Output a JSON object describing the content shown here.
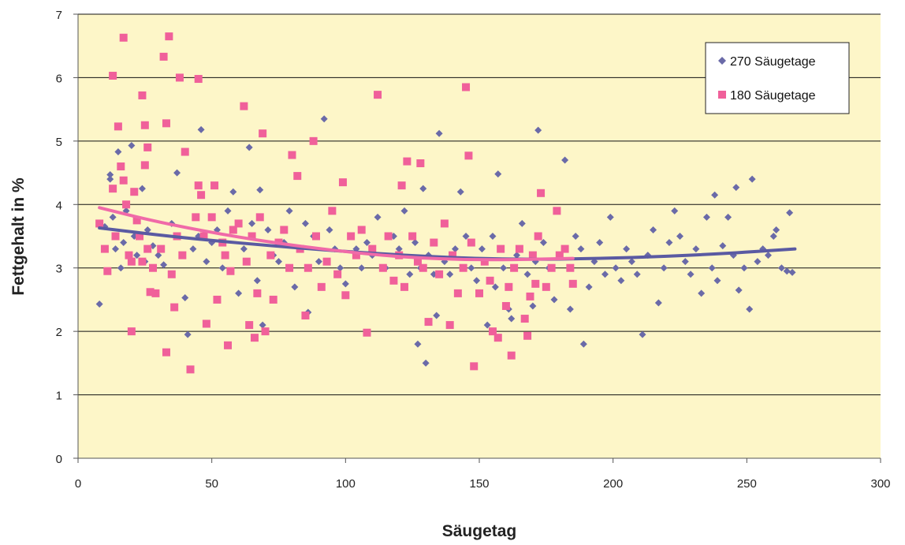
{
  "chart_data": {
    "type": "scatter",
    "title": "",
    "xlabel": "Säugetag",
    "ylabel": "Fettgehalt in %",
    "xlim": [
      0,
      300
    ],
    "ylim": [
      0,
      7
    ],
    "xticks": [
      0,
      50,
      100,
      150,
      200,
      250,
      300
    ],
    "yticks": [
      0,
      1,
      2,
      3,
      4,
      5,
      6,
      7
    ],
    "grid": "horizontal",
    "legend_position": "top-right",
    "plot_background": "#fdf6c8",
    "series": [
      {
        "name": "270 Säugetage",
        "marker": "diamond",
        "color": "#6a6aa8",
        "points": [
          [
            8,
            2.43
          ],
          [
            10,
            3.65
          ],
          [
            12,
            4.47
          ],
          [
            12,
            4.4
          ],
          [
            13,
            3.8
          ],
          [
            14,
            3.3
          ],
          [
            15,
            4.83
          ],
          [
            16,
            3.0
          ],
          [
            17,
            3.4
          ],
          [
            18,
            3.9
          ],
          [
            20,
            4.93
          ],
          [
            21,
            3.5
          ],
          [
            22,
            3.2
          ],
          [
            24,
            4.25
          ],
          [
            25,
            3.1
          ],
          [
            26,
            3.6
          ],
          [
            28,
            3.35
          ],
          [
            30,
            3.2
          ],
          [
            32,
            3.05
          ],
          [
            35,
            3.7
          ],
          [
            37,
            4.5
          ],
          [
            40,
            2.53
          ],
          [
            41,
            1.95
          ],
          [
            43,
            3.3
          ],
          [
            45,
            3.5
          ],
          [
            46,
            5.18
          ],
          [
            48,
            3.1
          ],
          [
            50,
            3.4
          ],
          [
            52,
            3.6
          ],
          [
            54,
            3.0
          ],
          [
            56,
            3.9
          ],
          [
            58,
            4.2
          ],
          [
            60,
            2.6
          ],
          [
            62,
            3.3
          ],
          [
            64,
            4.9
          ],
          [
            65,
            3.7
          ],
          [
            67,
            2.8
          ],
          [
            68,
            4.23
          ],
          [
            69,
            2.1
          ],
          [
            71,
            3.6
          ],
          [
            73,
            3.2
          ],
          [
            75,
            3.1
          ],
          [
            77,
            3.4
          ],
          [
            79,
            3.9
          ],
          [
            81,
            2.7
          ],
          [
            83,
            3.3
          ],
          [
            85,
            3.7
          ],
          [
            86,
            2.3
          ],
          [
            88,
            3.5
          ],
          [
            90,
            3.1
          ],
          [
            92,
            5.35
          ],
          [
            94,
            3.6
          ],
          [
            96,
            3.3
          ],
          [
            98,
            3.0
          ],
          [
            100,
            2.75
          ],
          [
            102,
            3.5
          ],
          [
            104,
            3.3
          ],
          [
            106,
            3.0
          ],
          [
            108,
            3.4
          ],
          [
            110,
            3.2
          ],
          [
            112,
            3.8
          ],
          [
            115,
            3.0
          ],
          [
            118,
            3.5
          ],
          [
            120,
            3.3
          ],
          [
            122,
            3.9
          ],
          [
            124,
            2.9
          ],
          [
            126,
            3.4
          ],
          [
            127,
            1.8
          ],
          [
            128,
            3.0
          ],
          [
            129,
            4.25
          ],
          [
            130,
            1.5
          ],
          [
            131,
            3.2
          ],
          [
            133,
            2.9
          ],
          [
            134,
            2.25
          ],
          [
            135,
            5.12
          ],
          [
            137,
            3.1
          ],
          [
            139,
            2.9
          ],
          [
            141,
            3.3
          ],
          [
            143,
            4.2
          ],
          [
            145,
            3.5
          ],
          [
            147,
            3.0
          ],
          [
            149,
            2.8
          ],
          [
            151,
            3.3
          ],
          [
            153,
            2.1
          ],
          [
            155,
            3.5
          ],
          [
            156,
            2.7
          ],
          [
            157,
            4.48
          ],
          [
            159,
            3.0
          ],
          [
            161,
            2.35
          ],
          [
            162,
            2.2
          ],
          [
            164,
            3.2
          ],
          [
            166,
            3.7
          ],
          [
            168,
            2.9
          ],
          [
            170,
            2.4
          ],
          [
            171,
            3.1
          ],
          [
            172,
            5.17
          ],
          [
            174,
            3.4
          ],
          [
            176,
            3.0
          ],
          [
            178,
            2.5
          ],
          [
            180,
            3.2
          ],
          [
            182,
            4.7
          ],
          [
            184,
            2.35
          ],
          [
            186,
            3.5
          ],
          [
            188,
            3.3
          ],
          [
            189,
            1.8
          ],
          [
            191,
            2.7
          ],
          [
            193,
            3.1
          ],
          [
            195,
            3.4
          ],
          [
            197,
            2.9
          ],
          [
            199,
            3.8
          ],
          [
            201,
            3.0
          ],
          [
            203,
            2.8
          ],
          [
            205,
            3.3
          ],
          [
            207,
            3.1
          ],
          [
            209,
            2.9
          ],
          [
            211,
            1.95
          ],
          [
            213,
            3.2
          ],
          [
            215,
            3.6
          ],
          [
            217,
            2.45
          ],
          [
            219,
            3.0
          ],
          [
            221,
            3.4
          ],
          [
            223,
            3.9
          ],
          [
            225,
            3.5
          ],
          [
            227,
            3.1
          ],
          [
            229,
            2.9
          ],
          [
            231,
            3.3
          ],
          [
            233,
            2.6
          ],
          [
            235,
            3.8
          ],
          [
            237,
            3.0
          ],
          [
            238,
            4.15
          ],
          [
            239,
            2.8
          ],
          [
            241,
            3.35
          ],
          [
            243,
            3.8
          ],
          [
            245,
            3.2
          ],
          [
            246,
            4.27
          ],
          [
            247,
            2.65
          ],
          [
            249,
            3.0
          ],
          [
            251,
            2.35
          ],
          [
            252,
            4.4
          ],
          [
            254,
            3.1
          ],
          [
            256,
            3.3
          ],
          [
            258,
            3.2
          ],
          [
            260,
            3.5
          ],
          [
            261,
            3.6
          ],
          [
            263,
            3.0
          ],
          [
            265,
            2.95
          ],
          [
            266,
            3.87
          ],
          [
            267,
            2.93
          ]
        ]
      },
      {
        "name": "180 Säugetage",
        "marker": "square",
        "color": "#f0609a",
        "points": [
          [
            8,
            3.7
          ],
          [
            10,
            3.3
          ],
          [
            11,
            2.95
          ],
          [
            13,
            4.25
          ],
          [
            13,
            6.03
          ],
          [
            14,
            3.5
          ],
          [
            15,
            5.23
          ],
          [
            16,
            4.6
          ],
          [
            17,
            4.38
          ],
          [
            17,
            6.63
          ],
          [
            18,
            4.0
          ],
          [
            19,
            3.2
          ],
          [
            20,
            3.1
          ],
          [
            20,
            2.0
          ],
          [
            21,
            4.2
          ],
          [
            22,
            3.75
          ],
          [
            23,
            3.5
          ],
          [
            24,
            3.1
          ],
          [
            24,
            5.72
          ],
          [
            25,
            5.25
          ],
          [
            25,
            4.62
          ],
          [
            26,
            4.9
          ],
          [
            26,
            3.3
          ],
          [
            27,
            2.62
          ],
          [
            28,
            3.0
          ],
          [
            29,
            2.6
          ],
          [
            31,
            3.3
          ],
          [
            32,
            6.33
          ],
          [
            33,
            5.28
          ],
          [
            33,
            1.67
          ],
          [
            34,
            6.65
          ],
          [
            35,
            2.9
          ],
          [
            36,
            2.38
          ],
          [
            37,
            3.5
          ],
          [
            38,
            6.0
          ],
          [
            39,
            3.2
          ],
          [
            40,
            4.83
          ],
          [
            42,
            1.4
          ],
          [
            44,
            3.8
          ],
          [
            45,
            5.98
          ],
          [
            45,
            4.3
          ],
          [
            46,
            4.15
          ],
          [
            47,
            3.5
          ],
          [
            48,
            2.12
          ],
          [
            50,
            3.8
          ],
          [
            51,
            4.3
          ],
          [
            52,
            2.5
          ],
          [
            54,
            3.4
          ],
          [
            55,
            3.2
          ],
          [
            56,
            1.78
          ],
          [
            57,
            2.95
          ],
          [
            58,
            3.6
          ],
          [
            60,
            3.7
          ],
          [
            62,
            5.55
          ],
          [
            63,
            3.1
          ],
          [
            64,
            2.1
          ],
          [
            65,
            3.5
          ],
          [
            66,
            1.9
          ],
          [
            67,
            2.6
          ],
          [
            68,
            3.8
          ],
          [
            69,
            5.12
          ],
          [
            70,
            2.0
          ],
          [
            72,
            3.2
          ],
          [
            73,
            2.5
          ],
          [
            75,
            3.4
          ],
          [
            77,
            3.6
          ],
          [
            79,
            3.0
          ],
          [
            80,
            4.78
          ],
          [
            82,
            4.45
          ],
          [
            83,
            3.3
          ],
          [
            85,
            2.25
          ],
          [
            86,
            3.0
          ],
          [
            88,
            5.0
          ],
          [
            89,
            3.5
          ],
          [
            91,
            2.7
          ],
          [
            93,
            3.1
          ],
          [
            95,
            3.9
          ],
          [
            97,
            2.9
          ],
          [
            99,
            4.35
          ],
          [
            100,
            2.57
          ],
          [
            102,
            3.5
          ],
          [
            104,
            3.2
          ],
          [
            106,
            3.6
          ],
          [
            108,
            1.98
          ],
          [
            110,
            3.3
          ],
          [
            112,
            5.73
          ],
          [
            114,
            3.0
          ],
          [
            116,
            3.5
          ],
          [
            118,
            2.8
          ],
          [
            120,
            3.2
          ],
          [
            121,
            4.3
          ],
          [
            122,
            2.7
          ],
          [
            123,
            4.68
          ],
          [
            125,
            3.5
          ],
          [
            127,
            3.1
          ],
          [
            128,
            4.65
          ],
          [
            129,
            3.0
          ],
          [
            131,
            2.15
          ],
          [
            133,
            3.4
          ],
          [
            135,
            2.9
          ],
          [
            137,
            3.7
          ],
          [
            139,
            2.1
          ],
          [
            140,
            3.2
          ],
          [
            142,
            2.6
          ],
          [
            144,
            3.0
          ],
          [
            145,
            5.85
          ],
          [
            146,
            4.77
          ],
          [
            147,
            3.4
          ],
          [
            148,
            1.45
          ],
          [
            150,
            2.6
          ],
          [
            152,
            3.1
          ],
          [
            154,
            2.8
          ],
          [
            155,
            2.0
          ],
          [
            157,
            1.9
          ],
          [
            158,
            3.3
          ],
          [
            160,
            2.4
          ],
          [
            161,
            2.7
          ],
          [
            162,
            1.62
          ],
          [
            163,
            3.0
          ],
          [
            165,
            3.3
          ],
          [
            167,
            2.2
          ],
          [
            168,
            1.93
          ],
          [
            169,
            2.55
          ],
          [
            170,
            3.2
          ],
          [
            171,
            2.75
          ],
          [
            172,
            3.5
          ],
          [
            173,
            4.18
          ],
          [
            175,
            2.7
          ],
          [
            177,
            3.0
          ],
          [
            179,
            3.9
          ],
          [
            180,
            3.2
          ],
          [
            182,
            3.3
          ],
          [
            184,
            3.0
          ],
          [
            185,
            2.75
          ]
        ]
      }
    ],
    "trendlines": [
      {
        "series": "270 Säugetage",
        "color": "#5a5aa2",
        "points": [
          [
            8,
            3.63
          ],
          [
            40,
            3.47
          ],
          [
            80,
            3.32
          ],
          [
            120,
            3.2
          ],
          [
            160,
            3.13
          ],
          [
            200,
            3.15
          ],
          [
            240,
            3.22
          ],
          [
            268,
            3.3
          ]
        ]
      },
      {
        "series": "180 Säugetage",
        "color": "#f06aa8",
        "points": [
          [
            8,
            3.95
          ],
          [
            30,
            3.72
          ],
          [
            60,
            3.48
          ],
          [
            90,
            3.3
          ],
          [
            120,
            3.17
          ],
          [
            150,
            3.12
          ],
          [
            185,
            3.15
          ]
        ]
      }
    ]
  }
}
